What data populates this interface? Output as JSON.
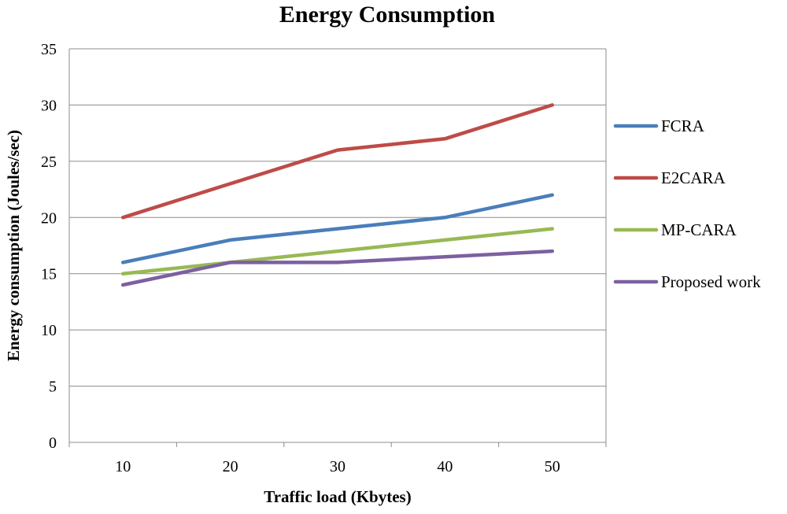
{
  "chart_data": {
    "type": "line",
    "title": "Energy Consumption",
    "xlabel": "Traffic load (Kbytes)",
    "ylabel": "Energy consumption (Joules/sec)",
    "categories": [
      "10",
      "20",
      "30",
      "40",
      "50"
    ],
    "ylim": [
      0,
      35
    ],
    "yticks": [
      "0",
      "5",
      "10",
      "15",
      "20",
      "25",
      "30",
      "35"
    ],
    "grid": true,
    "legend_position": "right",
    "series": [
      {
        "name": "FCRA",
        "color": "#4a7ebb",
        "values": [
          16,
          18,
          19,
          20,
          22
        ]
      },
      {
        "name": "E2CARA",
        "color": "#be4b48",
        "values": [
          20,
          23,
          26,
          27,
          30
        ]
      },
      {
        "name": "MP-CARA",
        "color": "#98b954",
        "values": [
          15,
          16,
          17,
          18,
          19
        ]
      },
      {
        "name": "Proposed work",
        "color": "#7d60a0",
        "values": [
          14,
          16,
          16,
          16.5,
          17
        ]
      }
    ]
  }
}
